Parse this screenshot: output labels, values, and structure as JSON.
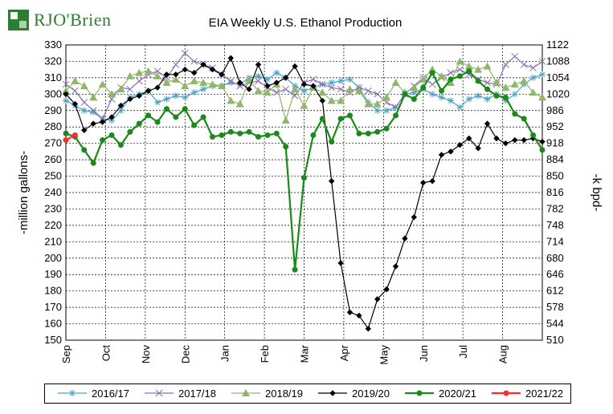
{
  "brand": {
    "name_part1": "RJO",
    "name_part2": "'Brien"
  },
  "chart_data": {
    "type": "line",
    "title": "EIA Weekly U.S. Ethanol Production",
    "ylabel_left": "-million gallons-",
    "ylabel_right": "-k bpd-",
    "ylim_left": [
      150,
      330
    ],
    "yticks_left": [
      150,
      160,
      170,
      180,
      190,
      200,
      210,
      220,
      230,
      240,
      250,
      260,
      270,
      280,
      290,
      300,
      310,
      320,
      330
    ],
    "ylim_right": [
      510,
      1122
    ],
    "yticks_right": [
      510,
      544,
      578,
      612,
      646,
      680,
      714,
      748,
      782,
      816,
      850,
      884,
      918,
      952,
      986,
      1020,
      1054,
      1088,
      1122
    ],
    "x_categories": [
      "Sep",
      "Oct",
      "Nov",
      "Dec",
      "Jan",
      "Feb",
      "Mar",
      "Apr",
      "May",
      "Jun",
      "Jul",
      "Aug"
    ],
    "x_note": "x values are week index (0 = first week of Sep, 52 = end of Aug)",
    "xlim": [
      0,
      52
    ],
    "grid": true,
    "legend_position": "bottom",
    "series": [
      {
        "name": "2016/17",
        "color": "#4aa3c7",
        "marker": "asterisk",
        "x": [
          0,
          1,
          2,
          3,
          4,
          5,
          6,
          7,
          8,
          9,
          10,
          11,
          12,
          13,
          14,
          15,
          16,
          17,
          18,
          19,
          20,
          21,
          22,
          23,
          24,
          25,
          26,
          27,
          28,
          29,
          30,
          31,
          32,
          33,
          34,
          35,
          36,
          37,
          38,
          39,
          40,
          41,
          42,
          43,
          44,
          45,
          46,
          47,
          48,
          49,
          50,
          51,
          52
        ],
        "values": [
          296,
          293,
          290,
          289,
          285,
          284,
          290,
          298,
          300,
          302,
          295,
          297,
          299,
          298,
          301,
          303,
          305,
          305,
          307,
          306,
          310,
          311,
          309,
          313,
          310,
          305,
          302,
          304,
          306,
          307,
          308,
          309,
          304,
          295,
          290,
          290,
          292,
          300,
          301,
          303,
          300,
          298,
          296,
          292,
          297,
          299,
          297,
          300,
          296,
          300,
          306,
          310,
          312
        ]
      },
      {
        "name": "2017/18",
        "color": "#8b6fb3",
        "marker": "x",
        "x": [
          0,
          1,
          2,
          3,
          4,
          5,
          6,
          7,
          8,
          9,
          10,
          11,
          12,
          13,
          14,
          15,
          16,
          17,
          18,
          19,
          20,
          21,
          22,
          23,
          24,
          25,
          26,
          27,
          28,
          29,
          30,
          31,
          32,
          33,
          34,
          35,
          36,
          37,
          38,
          39,
          40,
          41,
          42,
          43,
          44,
          45,
          46,
          47,
          48,
          49,
          50,
          51,
          52
        ],
        "values": [
          306,
          302,
          295,
          290,
          285,
          297,
          304,
          303,
          308,
          312,
          314,
          310,
          318,
          325,
          320,
          318,
          316,
          312,
          308,
          305,
          307,
          308,
          304,
          301,
          303,
          299,
          307,
          309,
          306,
          304,
          303,
          301,
          304,
          302,
          300,
          295,
          292,
          300,
          305,
          310,
          306,
          310,
          313,
          315,
          312,
          309,
          307,
          306,
          318,
          323,
          318,
          316,
          320
        ]
      },
      {
        "name": "2018/19",
        "color": "#8fb66a",
        "marker": "triangle",
        "x": [
          0,
          1,
          2,
          3,
          4,
          5,
          6,
          7,
          8,
          9,
          10,
          11,
          12,
          13,
          14,
          15,
          16,
          17,
          18,
          19,
          20,
          21,
          22,
          23,
          24,
          25,
          26,
          27,
          28,
          29,
          30,
          31,
          32,
          33,
          34,
          35,
          36,
          37,
          38,
          39,
          40,
          41,
          42,
          43,
          44,
          45,
          46,
          47,
          48,
          49,
          50,
          51,
          52
        ],
        "values": [
          302,
          308,
          305,
          298,
          306,
          300,
          303,
          311,
          313,
          314,
          311,
          307,
          309,
          305,
          308,
          307,
          306,
          305,
          296,
          294,
          309,
          302,
          301,
          306,
          284,
          303,
          293,
          304,
          301,
          296,
          296,
          303,
          302,
          294,
          294,
          298,
          307,
          301,
          304,
          309,
          315,
          311,
          307,
          320,
          317,
          315,
          317,
          307,
          304,
          306,
          308,
          301,
          298
        ]
      },
      {
        "name": "2019/20",
        "color": "#000000",
        "marker": "diamond",
        "x": [
          0,
          1,
          2,
          3,
          4,
          5,
          6,
          7,
          8,
          9,
          10,
          11,
          12,
          13,
          14,
          15,
          16,
          17,
          18,
          19,
          20,
          21,
          22,
          23,
          24,
          25,
          26,
          27,
          28,
          29,
          30,
          31,
          32,
          33,
          34,
          35,
          36,
          37,
          38,
          39,
          40,
          41,
          42,
          43,
          44,
          45,
          46,
          47,
          48,
          49,
          50,
          51,
          52
        ],
        "values": [
          300,
          294,
          278,
          282,
          283,
          286,
          293,
          297,
          299,
          302,
          304,
          312,
          312,
          315,
          313,
          318,
          315,
          312,
          322,
          307,
          303,
          318,
          305,
          307,
          310,
          317,
          306,
          305,
          296,
          247,
          197,
          167,
          165,
          157,
          175,
          181,
          195,
          212,
          225,
          246,
          247,
          263,
          265,
          269,
          273,
          267,
          282,
          273,
          270,
          272,
          272,
          273,
          271
        ]
      },
      {
        "name": "2020/21",
        "color": "#1a8a1a",
        "marker": "circle",
        "x": [
          0,
          1,
          2,
          3,
          4,
          5,
          6,
          7,
          8,
          9,
          10,
          11,
          12,
          13,
          14,
          15,
          16,
          17,
          18,
          19,
          20,
          21,
          22,
          23,
          24,
          25,
          26,
          27,
          28,
          29,
          30,
          31,
          32,
          33,
          34,
          35,
          36,
          37,
          38,
          39,
          40,
          41,
          42,
          43,
          44,
          45,
          46,
          47,
          48,
          49,
          50,
          51,
          52
        ],
        "values": [
          276,
          274,
          266,
          258,
          272,
          275,
          269,
          277,
          282,
          287,
          283,
          291,
          286,
          291,
          281,
          286,
          274,
          275,
          277,
          276,
          277,
          274,
          275,
          276,
          268,
          193,
          249,
          275,
          285,
          271,
          285,
          287,
          276,
          276,
          277,
          279,
          287,
          300,
          297,
          304,
          313,
          302,
          309,
          311,
          314,
          308,
          303,
          299,
          298,
          288,
          285,
          275,
          266
        ]
      },
      {
        "name": "2021/22",
        "color": "#ff2a2a",
        "marker": "circle",
        "x": [
          0,
          1
        ],
        "values": [
          272,
          275
        ]
      }
    ]
  }
}
